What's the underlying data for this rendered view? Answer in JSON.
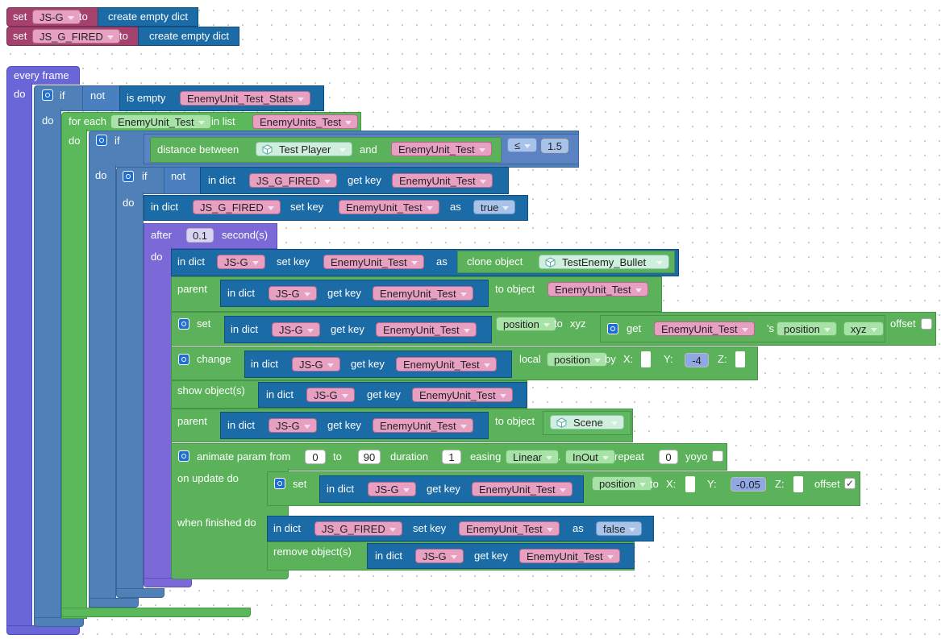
{
  "top_sets": [
    {
      "set": "set",
      "var": "JS-G",
      "to": "to",
      "value": "create empty dict"
    },
    {
      "set": "set",
      "var": "JS_G_FIRED",
      "to": "to",
      "value": "create empty dict"
    }
  ],
  "event": {
    "label": "every frame",
    "do": "do"
  },
  "if1": {
    "if": "if",
    "not": "not",
    "is_empty": "is empty",
    "var": "EnemyUnit_Test_Stats",
    "do": "do"
  },
  "foreach": {
    "label": "for each",
    "item": "EnemyUnit_Test",
    "in_list": "in list",
    "list": "EnemyUnits_Test",
    "do": "do"
  },
  "if2": {
    "if": "if",
    "distance": "distance between",
    "obj": "Test Player",
    "and": "and",
    "var": "EnemyUnit_Test",
    "op": "≤",
    "value": "1.5",
    "do": "do"
  },
  "if3": {
    "if": "if",
    "not": "not",
    "in_dict": "in dict",
    "dict": "JS_G_FIRED",
    "get_key": "get key",
    "key": "EnemyUnit_Test",
    "do": "do"
  },
  "setfired": {
    "in_dict": "in dict",
    "dict": "JS_G_FIRED",
    "set_key": "set key",
    "key": "EnemyUnit_Test",
    "as": "as",
    "value": "true"
  },
  "after": {
    "label": "after",
    "value": "0.1",
    "unit": "second(s)",
    "do": "do"
  },
  "clone": {
    "in_dict": "in dict",
    "dict": "JS-G",
    "set_key": "set key",
    "key": "EnemyUnit_Test",
    "as": "as",
    "clone": "clone object",
    "obj": "TestEnemy_Bullet"
  },
  "parent1": {
    "parent": "parent",
    "in_dict": "in dict",
    "dict": "JS-G",
    "get_key": "get key",
    "key": "EnemyUnit_Test",
    "to_object": "to object",
    "target": "EnemyUnit_Test"
  },
  "setpos": {
    "set": "set",
    "in_dict": "in dict",
    "dict": "JS-G",
    "get_key": "get key",
    "key": "EnemyUnit_Test",
    "prop": "position",
    "to": "to",
    "xyz": "xyz",
    "get": "get",
    "var": "EnemyUnit_Test",
    "s": "'s",
    "prop2": "position",
    "xyz2": "xyz",
    "offset": "offset"
  },
  "change": {
    "change": "change",
    "in_dict": "in dict",
    "dict": "JS-G",
    "get_key": "get key",
    "key": "EnemyUnit_Test",
    "local": "local",
    "prop": "position",
    "by": "by",
    "x": "X:",
    "y": "Y:",
    "yval": "-4",
    "z": "Z:"
  },
  "show": {
    "label": "show object(s)",
    "in_dict": "in dict",
    "dict": "JS-G",
    "get_key": "get key",
    "key": "EnemyUnit_Test"
  },
  "parent2": {
    "parent": "parent",
    "in_dict": "in dict",
    "dict": "JS-G",
    "get_key": "get key",
    "key": "EnemyUnit_Test",
    "to_object": "to object",
    "target": "Scene"
  },
  "animate": {
    "label": "animate param from",
    "from": "0",
    "to": "to",
    "to_val": "90",
    "duration": "duration",
    "dur_val": "1",
    "easing": "easing",
    "ease": "Linear",
    "dot": ".",
    "inout": "InOut",
    "repeat": "repeat",
    "rep_val": "0",
    "yoyo": "yoyo",
    "on_update": "on update do",
    "when_finished": "when finished do"
  },
  "update_set": {
    "set": "set",
    "in_dict": "in dict",
    "dict": "JS-G",
    "get_key": "get key",
    "key": "EnemyUnit_Test",
    "prop": "position",
    "to": "to",
    "x": "X:",
    "y": "Y:",
    "yval": "-0.05",
    "z": "Z:",
    "offset": "offset",
    "offset_check": "✓"
  },
  "finish_set": {
    "in_dict": "in dict",
    "dict": "JS_G_FIRED",
    "set_key": "set key",
    "key": "EnemyUnit_Test",
    "as": "as",
    "value": "false"
  },
  "remove": {
    "label": "remove object(s)",
    "in_dict": "in dict",
    "dict": "JS-G",
    "get_key": "get key",
    "key": "EnemyUnit_Test"
  },
  "colors": {
    "variable": "#a5416d",
    "dictionary": "#1a6ba6",
    "event": "#6966d8",
    "control": "#4f81b8",
    "lists": "#5bb85b",
    "objects": "#5bb25b",
    "timing": "#7a69d6"
  }
}
